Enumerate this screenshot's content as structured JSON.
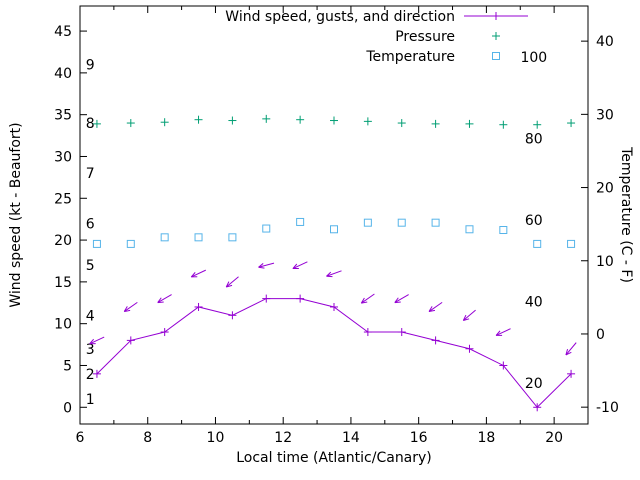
{
  "chart_data": {
    "type": "line",
    "title": "",
    "xlabel": "Local time (Atlantic/Canary)",
    "ylabel_left": "Wind speed (kt - Beaufort)",
    "ylabel_right": "Temperature (C - F)",
    "x_range": [
      6,
      21
    ],
    "x_major_ticks": [
      6,
      8,
      10,
      12,
      14,
      16,
      18,
      20
    ],
    "x_minor_tick_step": 1,
    "y_left_range": [
      -2,
      48
    ],
    "y_left_ticks": [
      0,
      5,
      10,
      15,
      20,
      25,
      30,
      35,
      40,
      45
    ],
    "y_right_range": [
      -12.3,
      44.8
    ],
    "y_right_ticks": [
      -10,
      0,
      10,
      20,
      30,
      40
    ],
    "grid": false,
    "legend_position": "top-right-inside",
    "beaufort_label_x": 6.3,
    "beaufort_labels": [
      {
        "text": "1",
        "kt": 1
      },
      {
        "text": "2",
        "kt": 4
      },
      {
        "text": "3",
        "kt": 7
      },
      {
        "text": "4",
        "kt": 11
      },
      {
        "text": "5",
        "kt": 17
      },
      {
        "text": "6",
        "kt": 22
      },
      {
        "text": "7",
        "kt": 28
      },
      {
        "text": "8",
        "kt": 34
      },
      {
        "text": "9",
        "kt": 41
      }
    ],
    "fahrenheit_label_x": 19.4,
    "fahrenheit_labels": [
      {
        "text": "20",
        "c": -6.7
      },
      {
        "text": "40",
        "c": 4.4
      },
      {
        "text": "60",
        "c": 15.6
      },
      {
        "text": "80",
        "c": 26.7
      },
      {
        "text": "100",
        "c": 37.8
      }
    ],
    "x": [
      6.5,
      7.5,
      8.5,
      9.5,
      10.5,
      11.5,
      12.5,
      13.5,
      14.5,
      15.5,
      16.5,
      17.5,
      18.5,
      19.5,
      20.5
    ],
    "series": [
      {
        "name": "Wind speed, gusts, and direction",
        "color": "#9400d3",
        "style": "line-plus",
        "axis": "left",
        "legend": true,
        "values": [
          4,
          8,
          9,
          12,
          11,
          13,
          13,
          12,
          9,
          9,
          8,
          7,
          5,
          0,
          4
        ]
      },
      {
        "name": "Wind gust direction arrows",
        "color": "#9400d3",
        "style": "arrows",
        "axis": "left",
        "legend": false,
        "x": [
          6.5,
          7.5,
          8.5,
          9.5,
          10.5,
          11.5,
          12.5,
          13.5,
          14.5,
          15.5,
          16.5,
          17.5,
          18.5,
          20.5
        ],
        "values": [
          8,
          12,
          13,
          16,
          15,
          17,
          17,
          16,
          13,
          13,
          12,
          11,
          9,
          7
        ],
        "angles_deg": [
          205,
          215,
          210,
          205,
          220,
          195,
          205,
          200,
          215,
          210,
          215,
          220,
          205,
          230
        ]
      },
      {
        "name": "Pressure",
        "color": "#009e73",
        "style": "plus",
        "axis": "left",
        "legend": true,
        "values": [
          33.9,
          34.0,
          34.1,
          34.4,
          34.3,
          34.5,
          34.4,
          34.3,
          34.2,
          34.0,
          33.9,
          33.9,
          33.8,
          33.8,
          34.0
        ]
      },
      {
        "name": "Temperature",
        "color": "#56b4e9",
        "style": "square-open",
        "axis": "right",
        "legend": true,
        "values": [
          12.3,
          12.3,
          13.2,
          13.2,
          13.2,
          14.4,
          15.3,
          14.3,
          15.2,
          15.2,
          15.2,
          14.3,
          14.2,
          12.3,
          12.3
        ]
      }
    ]
  }
}
